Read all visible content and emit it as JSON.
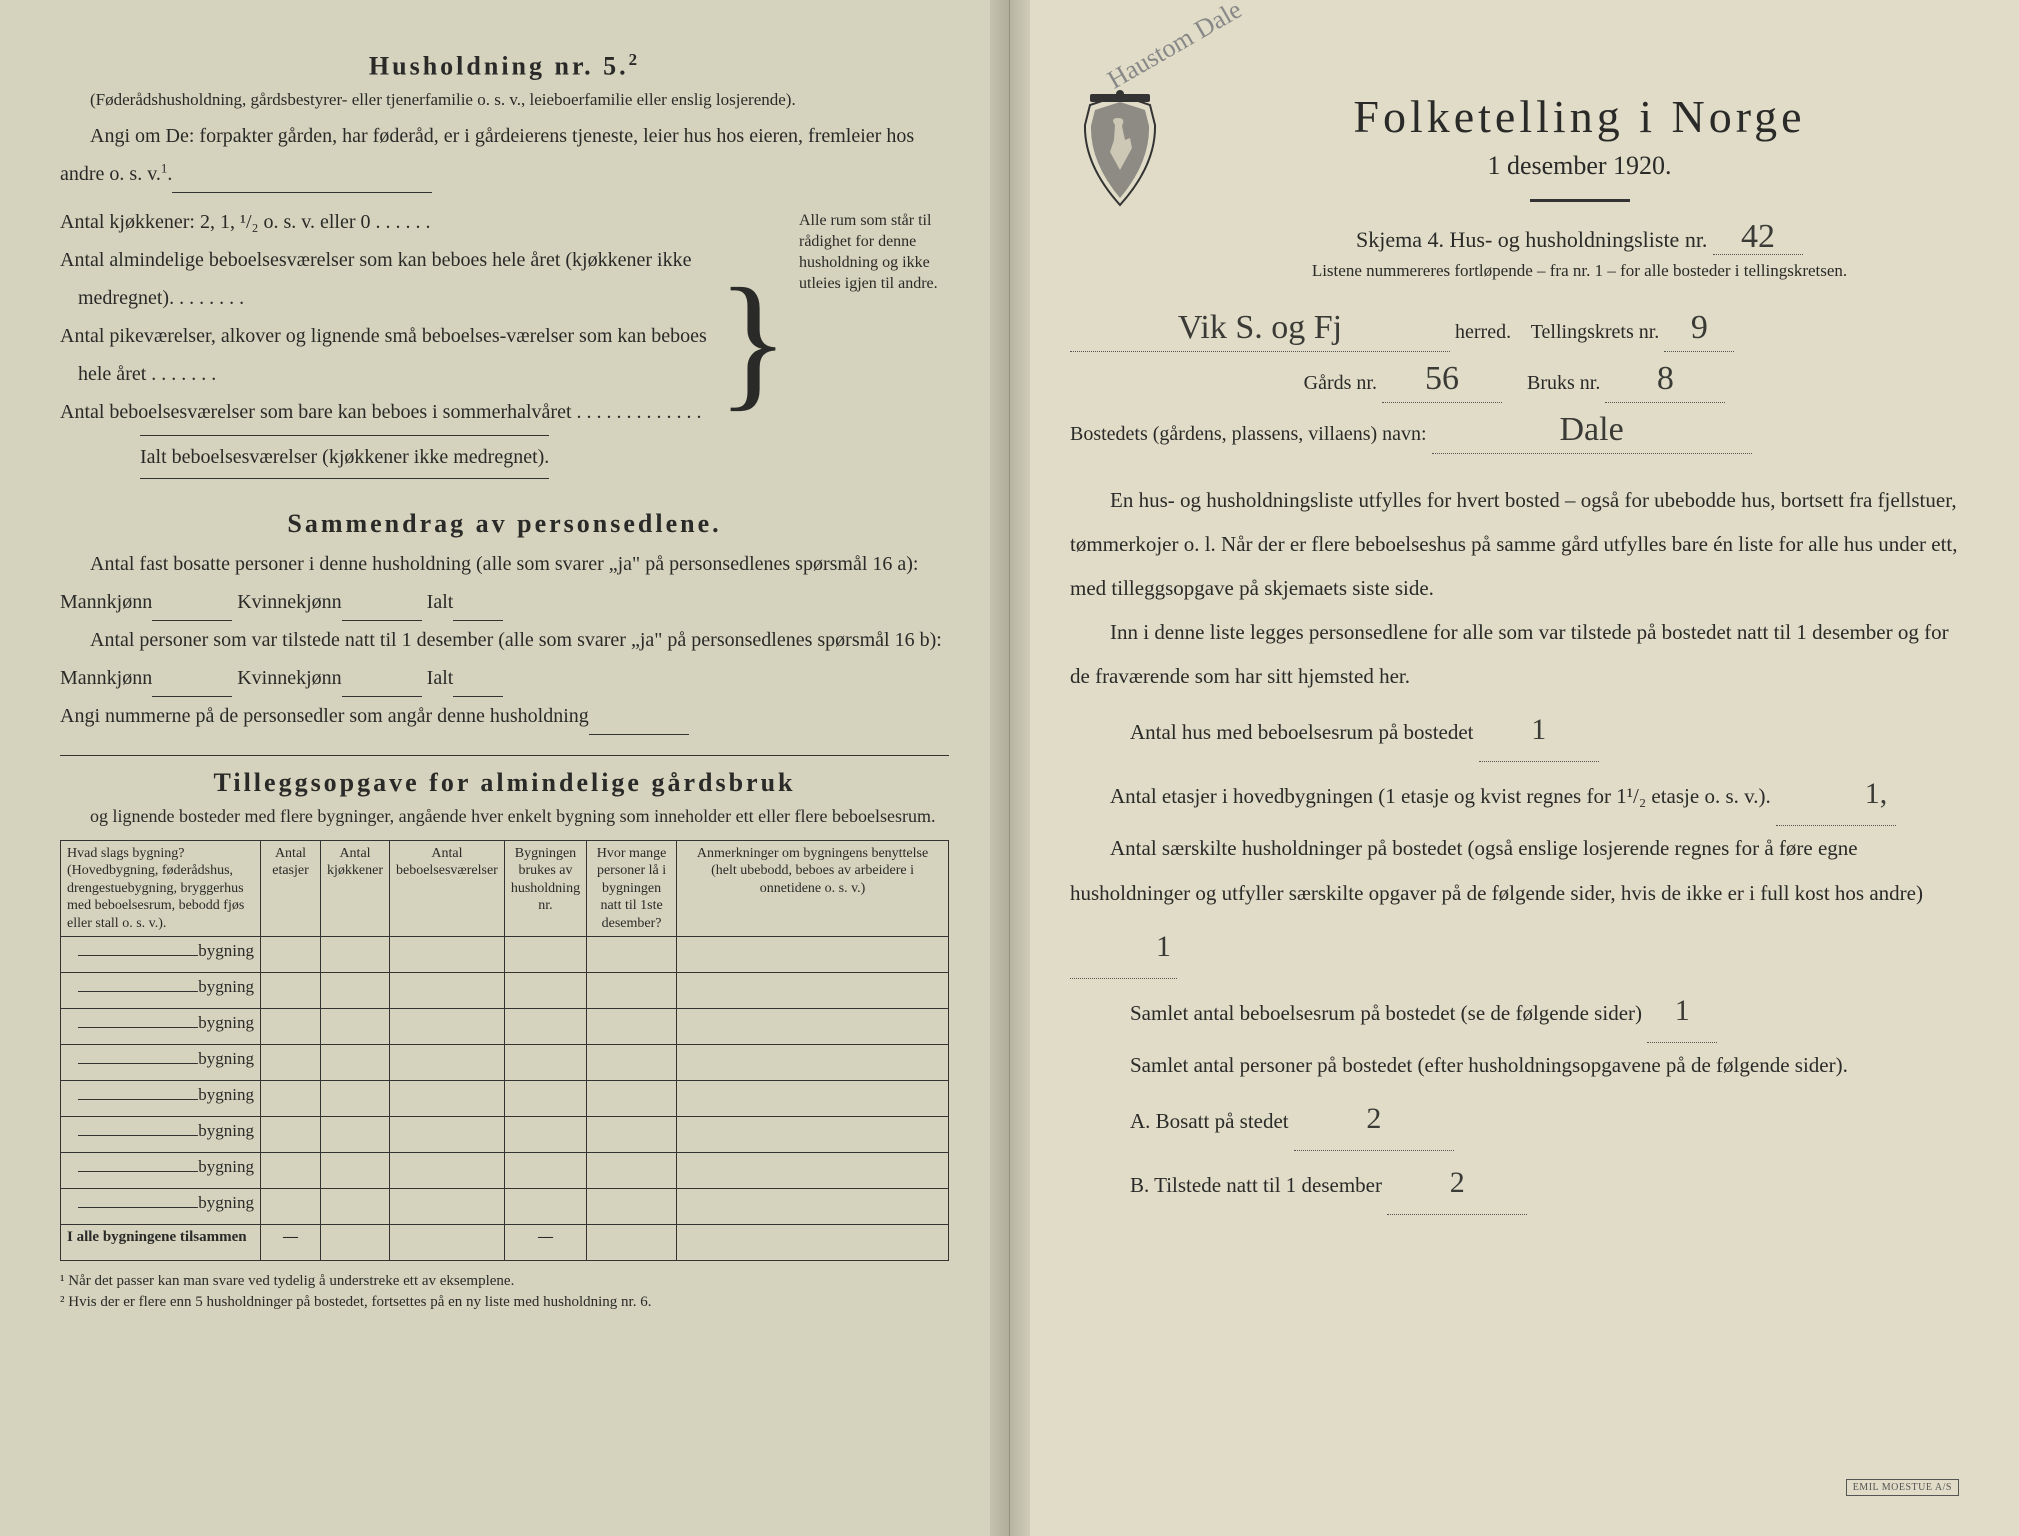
{
  "left": {
    "h5_title": "Husholdning nr. 5.",
    "h5_sup": "2",
    "h5_note": "(Føderådshusholdning, gårdsbestyrer- eller tjenerfamilie o. s. v., leieboerfamilie eller enslig losjerende).",
    "angi_intro": "Angi om De:  forpakter gården, har føderåd, er i gårdeierens tjeneste, leier hus hos eieren, fremleier hos andre o. s. v.",
    "angi_sup": "1",
    "kitchen_line": "Antal kjøkkener: 2, 1, ¹/₂ o. s. v. eller 0 . . . . . .",
    "rooms": [
      "Antal almindelige beboelsesværelser som kan beboes hele året (kjøkkener ikke medregnet). . . . . . . .",
      "Antal pikeværelser, alkover og lignende små beboelses-værelser som kan beboes hele året . . . . . . .",
      "Antal beboelsesværelser som bare kan beboes i sommerhalvåret . . . . . . . . . . . . ."
    ],
    "ialt_rooms": "Ialt beboelsesværelser  (kjøkkener ikke medregnet).",
    "brace_text": "Alle rum som står til rådighet for denne husholdning og ikke utleies igjen til andre.",
    "sammendrag_title": "Sammendrag av personsedlene.",
    "sammen_p1a": "Antal fast bosatte personer i denne husholdning (alle som svarer „ja\" på personsedlenes spørsmål 16 a): Mannkjønn",
    "sammen_p1b": "Kvinnekjønn",
    "sammen_p1c": "Ialt",
    "sammen_p2a": "Antal personer som var tilstede natt til 1 desember (alle som svarer „ja\" på personsedlenes spørsmål 16 b): Mannkjønn",
    "angi_nummerne": "Angi nummerne på de personsedler som angår denne husholdning",
    "tillegg_title": "Tilleggsopgave for almindelige gårdsbruk",
    "tillegg_sub": "og lignende bosteder med flere bygninger, angående hver enkelt bygning som inneholder ett eller flere beboelsesrum.",
    "table": {
      "headers": [
        "Hvad slags bygning?\n(Hovedbygning, føderådshus, drengestuebygning, bryggerhus med beboelsesrum, bebodd fjøs eller stall o. s. v.).",
        "Antal etasjer",
        "Antal kjøkkener",
        "Antal beboelsesværelser",
        "Bygningen brukes av husholdning nr.",
        "Hvor mange personer lå i bygningen natt til 1ste desember?",
        "Anmerkninger om bygningens benyttelse (helt ubebodd, beboes av arbeidere i onnetidene o. s. v.)"
      ],
      "row_label": "bygning",
      "row_count": 8,
      "footer_label": "I alle bygningene tilsammen",
      "footer_dashes": [
        "—",
        "",
        "",
        "—",
        "",
        ""
      ]
    },
    "footnote1": "¹  Når det passer kan man svare ved tydelig å understreke ett av eksemplene.",
    "footnote2": "²  Hvis der er flere enn 5 husholdninger på bostedet, fortsettes på en ny liste med husholdning nr. 6."
  },
  "right": {
    "pencil": "Haustom Dale",
    "title": "Folketelling  i  Norge",
    "date": "1 desember 1920.",
    "skjema": "Skjema 4.  Hus- og husholdningsliste nr.",
    "skjema_nr": "42",
    "listene": "Listene nummereres fortløpende – fra nr. 1 – for alle bosteder i tellingskretsen.",
    "herred_value": "Vik S. og Fj",
    "herred_label": "herred.",
    "tellingskrets_label": "Tellingskrets nr.",
    "tellingskrets_nr": "9",
    "gards_label": "Gårds nr.",
    "gards_nr": "56",
    "bruks_label": "Bruks nr.",
    "bruks_nr": "8",
    "bosted_label": "Bostedets (gårdens, plassens, villaens) navn:",
    "bosted_value": "Dale",
    "para1": "En hus- og husholdningsliste utfylles for hvert bosted – også for ubebodde hus, bortsett fra fjellstuer, tømmerkojer o. l.  Når der er flere beboelseshus på samme gård utfylles bare én liste for alle hus under ett, med tilleggsopgave på skjemaets siste side.",
    "para2": "Inn i denne liste legges personsedlene for alle som var tilstede på bostedet natt til 1 desember og for de fraværende som har sitt hjemsted her.",
    "q1_label": "Antal hus med beboelsesrum på bostedet",
    "q1_val": "1",
    "q2_label_a": "Antal etasjer i hovedbygningen (1 etasje og kvist regnes for 1¹/₂ etasje o. s. v.).",
    "q2_val": "1,",
    "q3_label": "Antal særskilte husholdninger på bostedet (også enslige losjerende regnes for å føre egne husholdninger og utfyller særskilte opgaver på de følgende sider, hvis de ikke er i full kost hos andre)",
    "q3_val": "1",
    "q4_label": "Samlet antal beboelsesrum på bostedet (se de følgende sider)",
    "q4_val": "1",
    "q5_label": "Samlet antal personer på bostedet (efter husholdningsopgavene på de følgende sider).",
    "qA_label": "A.  Bosatt på stedet",
    "qA_val": "2",
    "qB_label": "B.  Tilstede natt til 1 desember",
    "qB_val": "2",
    "stamp": "EMIL MOESTUE A/S"
  },
  "colors": {
    "paper_left": "#d5d3bd",
    "paper_right": "#e0dcc7",
    "ink": "#2a2a28",
    "pencil": "#888888"
  }
}
